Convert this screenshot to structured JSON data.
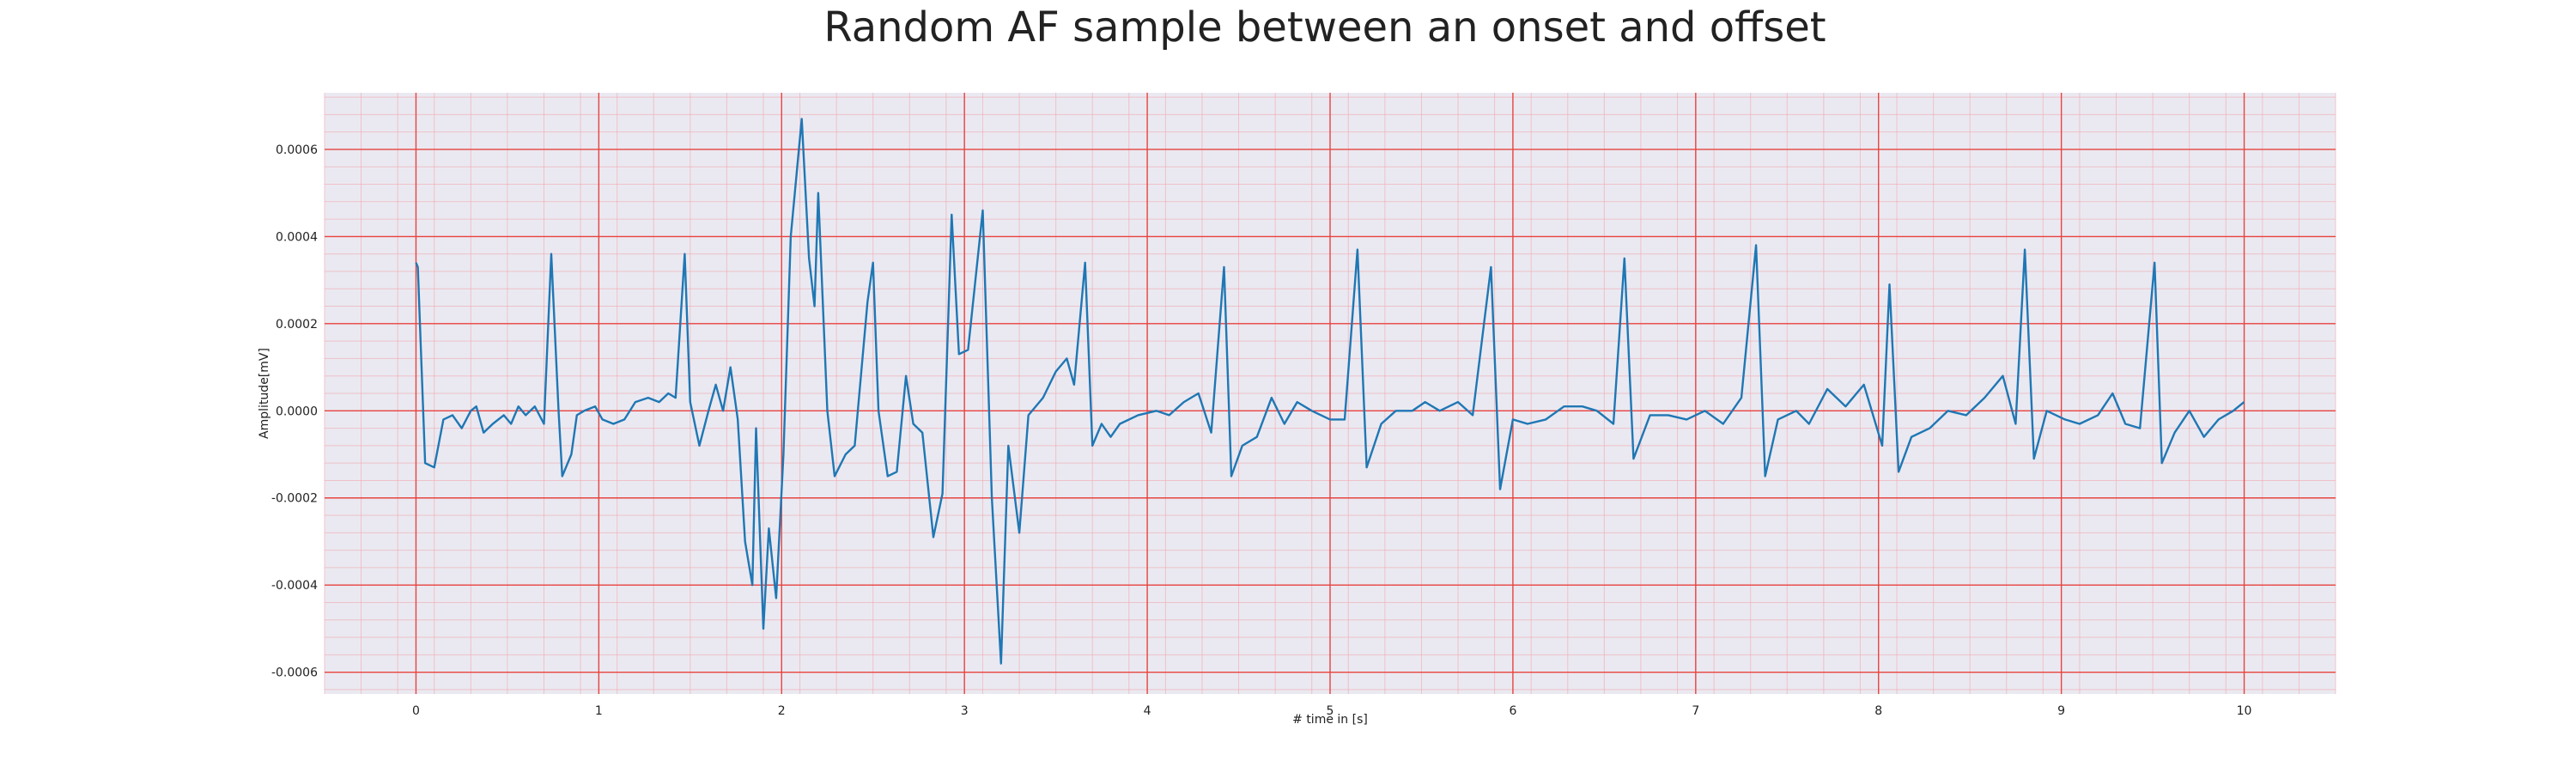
{
  "chart_data": {
    "type": "line",
    "title": "Random AF sample between an onset and offset",
    "xlabel": "# time in [s]",
    "ylabel": "Amplitude[mV]",
    "xlim": [
      -0.5,
      10.5
    ],
    "ylim": [
      -0.00065,
      0.00073
    ],
    "xticks": [
      0,
      1,
      2,
      3,
      4,
      5,
      6,
      7,
      8,
      9,
      10
    ],
    "xtick_labels": [
      "0",
      "1",
      "2",
      "3",
      "4",
      "5",
      "6",
      "7",
      "8",
      "9",
      "10"
    ],
    "yticks": [
      0.0006,
      0.0004,
      0.0002,
      0.0,
      -0.0002,
      -0.0004,
      -0.0006
    ],
    "ytick_labels": [
      "0.0006",
      "0.0004",
      "0.0002",
      "0.0000",
      "-0.0002",
      "-0.0004",
      "-0.0006"
    ],
    "grid": true,
    "minor_grid": true,
    "series": [
      {
        "color": "#1f77b4",
        "points": [
          [
            0.0,
            0.00034
          ],
          [
            0.01,
            0.00033
          ],
          [
            0.05,
            -0.00012
          ],
          [
            0.1,
            -0.00013
          ],
          [
            0.15,
            -2e-05
          ],
          [
            0.2,
            -1e-05
          ],
          [
            0.25,
            -4e-05
          ],
          [
            0.3,
            0.0
          ],
          [
            0.33,
            1e-05
          ],
          [
            0.37,
            -5e-05
          ],
          [
            0.42,
            -3e-05
          ],
          [
            0.48,
            -1e-05
          ],
          [
            0.52,
            -3e-05
          ],
          [
            0.56,
            1e-05
          ],
          [
            0.6,
            -1e-05
          ],
          [
            0.65,
            1e-05
          ],
          [
            0.7,
            -3e-05
          ],
          [
            0.74,
            0.00036
          ],
          [
            0.78,
            0.0
          ],
          [
            0.8,
            -0.00015
          ],
          [
            0.85,
            -0.0001
          ],
          [
            0.88,
            -1e-05
          ],
          [
            0.92,
            0.0
          ],
          [
            0.98,
            1e-05
          ],
          [
            1.02,
            -2e-05
          ],
          [
            1.08,
            -3e-05
          ],
          [
            1.14,
            -2e-05
          ],
          [
            1.2,
            2e-05
          ],
          [
            1.27,
            3e-05
          ],
          [
            1.33,
            2e-05
          ],
          [
            1.38,
            4e-05
          ],
          [
            1.42,
            3e-05
          ],
          [
            1.47,
            0.00036
          ],
          [
            1.5,
            2e-05
          ],
          [
            1.55,
            -8e-05
          ],
          [
            1.6,
            0.0
          ],
          [
            1.64,
            6e-05
          ],
          [
            1.68,
            0.0
          ],
          [
            1.72,
            0.0001
          ],
          [
            1.76,
            -2e-05
          ],
          [
            1.8,
            -0.0003
          ],
          [
            1.84,
            -0.0004
          ],
          [
            1.86,
            -4e-05
          ],
          [
            1.9,
            -0.0005
          ],
          [
            1.93,
            -0.00027
          ],
          [
            1.97,
            -0.00043
          ],
          [
            2.01,
            -0.0001
          ],
          [
            2.05,
            0.0004
          ],
          [
            2.11,
            0.00067
          ],
          [
            2.15,
            0.00035
          ],
          [
            2.18,
            0.00024
          ],
          [
            2.2,
            0.0005
          ],
          [
            2.25,
            0.0
          ],
          [
            2.29,
            -0.00015
          ],
          [
            2.35,
            -0.0001
          ],
          [
            2.4,
            -8e-05
          ],
          [
            2.47,
            0.00025
          ],
          [
            2.5,
            0.00034
          ],
          [
            2.53,
            0.0
          ],
          [
            2.58,
            -0.00015
          ],
          [
            2.63,
            -0.00014
          ],
          [
            2.68,
            8e-05
          ],
          [
            2.72,
            -3e-05
          ],
          [
            2.77,
            -5e-05
          ],
          [
            2.83,
            -0.00029
          ],
          [
            2.88,
            -0.00019
          ],
          [
            2.93,
            0.00045
          ],
          [
            2.97,
            0.00013
          ],
          [
            3.02,
            0.00014
          ],
          [
            3.1,
            0.00046
          ],
          [
            3.15,
            -0.0002
          ],
          [
            3.2,
            -0.00058
          ],
          [
            3.24,
            -8e-05
          ],
          [
            3.3,
            -0.00028
          ],
          [
            3.35,
            -1e-05
          ],
          [
            3.43,
            3e-05
          ],
          [
            3.5,
            9e-05
          ],
          [
            3.56,
            0.00012
          ],
          [
            3.6,
            6e-05
          ],
          [
            3.66,
            0.00034
          ],
          [
            3.7,
            -8e-05
          ],
          [
            3.75,
            -3e-05
          ],
          [
            3.8,
            -6e-05
          ],
          [
            3.85,
            -3e-05
          ],
          [
            3.95,
            -1e-05
          ],
          [
            4.05,
            0.0
          ],
          [
            4.12,
            -1e-05
          ],
          [
            4.2,
            2e-05
          ],
          [
            4.28,
            4e-05
          ],
          [
            4.35,
            -5e-05
          ],
          [
            4.42,
            0.00033
          ],
          [
            4.46,
            -0.00015
          ],
          [
            4.52,
            -8e-05
          ],
          [
            4.6,
            -6e-05
          ],
          [
            4.68,
            3e-05
          ],
          [
            4.75,
            -3e-05
          ],
          [
            4.82,
            2e-05
          ],
          [
            4.9,
            0.0
          ],
          [
            5.0,
            -2e-05
          ],
          [
            5.08,
            -2e-05
          ],
          [
            5.15,
            0.00037
          ],
          [
            5.2,
            -0.00013
          ],
          [
            5.28,
            -3e-05
          ],
          [
            5.36,
            0.0
          ],
          [
            5.45,
            0.0
          ],
          [
            5.52,
            2e-05
          ],
          [
            5.6,
            0.0
          ],
          [
            5.7,
            2e-05
          ],
          [
            5.78,
            -1e-05
          ],
          [
            5.88,
            0.00033
          ],
          [
            5.93,
            -0.00018
          ],
          [
            6.0,
            -2e-05
          ],
          [
            6.08,
            -3e-05
          ],
          [
            6.18,
            -2e-05
          ],
          [
            6.28,
            1e-05
          ],
          [
            6.38,
            1e-05
          ],
          [
            6.46,
            0.0
          ],
          [
            6.55,
            -3e-05
          ],
          [
            6.61,
            0.00035
          ],
          [
            6.66,
            -0.00011
          ],
          [
            6.75,
            -1e-05
          ],
          [
            6.85,
            -1e-05
          ],
          [
            6.95,
            -2e-05
          ],
          [
            7.05,
            0.0
          ],
          [
            7.15,
            -3e-05
          ],
          [
            7.25,
            3e-05
          ],
          [
            7.33,
            0.00038
          ],
          [
            7.38,
            -0.00015
          ],
          [
            7.45,
            -2e-05
          ],
          [
            7.55,
            0.0
          ],
          [
            7.62,
            -3e-05
          ],
          [
            7.72,
            5e-05
          ],
          [
            7.82,
            1e-05
          ],
          [
            7.92,
            6e-05
          ],
          [
            8.02,
            -8e-05
          ],
          [
            8.06,
            0.00029
          ],
          [
            8.11,
            -0.00014
          ],
          [
            8.18,
            -6e-05
          ],
          [
            8.28,
            -4e-05
          ],
          [
            8.38,
            0.0
          ],
          [
            8.48,
            -1e-05
          ],
          [
            8.58,
            3e-05
          ],
          [
            8.68,
            8e-05
          ],
          [
            8.75,
            -3e-05
          ],
          [
            8.8,
            0.00037
          ],
          [
            8.85,
            -0.00011
          ],
          [
            8.92,
            0.0
          ],
          [
            9.02,
            -2e-05
          ],
          [
            9.1,
            -3e-05
          ],
          [
            9.2,
            -1e-05
          ],
          [
            9.28,
            4e-05
          ],
          [
            9.35,
            -3e-05
          ],
          [
            9.43,
            -4e-05
          ],
          [
            9.51,
            0.00034
          ],
          [
            9.55,
            -0.00012
          ],
          [
            9.62,
            -5e-05
          ],
          [
            9.7,
            0.0
          ],
          [
            9.78,
            -6e-05
          ],
          [
            9.86,
            -2e-05
          ],
          [
            9.94,
            0.0
          ],
          [
            10.0,
            2e-05
          ]
        ]
      }
    ]
  }
}
